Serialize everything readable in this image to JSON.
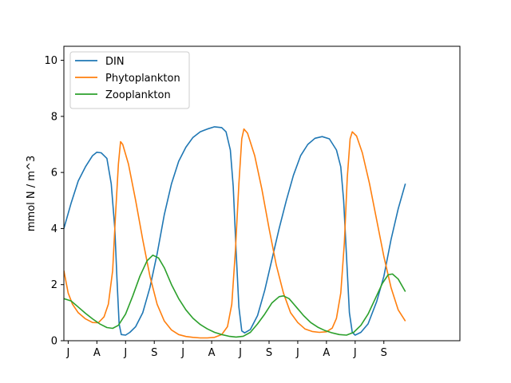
{
  "chart_data": {
    "type": "line",
    "title": "",
    "xlabel": "",
    "ylabel": "mmol N / m^3",
    "xlim": [
      0,
      27.6
    ],
    "ylim": [
      0,
      10.5
    ],
    "x_ticks": [
      {
        "pos": 0.3,
        "label": "J"
      },
      {
        "pos": 2.3,
        "label": "A"
      },
      {
        "pos": 4.3,
        "label": "J"
      },
      {
        "pos": 6.3,
        "label": "S"
      },
      {
        "pos": 8.3,
        "label": "J"
      },
      {
        "pos": 10.3,
        "label": "A"
      },
      {
        "pos": 12.3,
        "label": "J"
      },
      {
        "pos": 14.3,
        "label": "S"
      },
      {
        "pos": 16.3,
        "label": "J"
      },
      {
        "pos": 18.3,
        "label": "A"
      },
      {
        "pos": 20.3,
        "label": "J"
      },
      {
        "pos": 22.3,
        "label": "S"
      }
    ],
    "y_ticks": [
      0,
      2,
      4,
      6,
      8,
      10
    ],
    "legend": {
      "placement": "top-left"
    },
    "grid": false,
    "series": [
      {
        "name": "DIN",
        "color": "#1f77b4",
        "points": [
          [
            0,
            4.0
          ],
          [
            0.5,
            4.9
          ],
          [
            1,
            5.7
          ],
          [
            1.5,
            6.2
          ],
          [
            2,
            6.6
          ],
          [
            2.3,
            6.72
          ],
          [
            2.6,
            6.7
          ],
          [
            3,
            6.5
          ],
          [
            3.3,
            5.6
          ],
          [
            3.55,
            4.0
          ],
          [
            3.7,
            2.2
          ],
          [
            3.85,
            0.6
          ],
          [
            4.0,
            0.22
          ],
          [
            4.3,
            0.2
          ],
          [
            4.6,
            0.3
          ],
          [
            5.0,
            0.5
          ],
          [
            5.5,
            1.0
          ],
          [
            6.0,
            1.9
          ],
          [
            6.5,
            3.1
          ],
          [
            7.0,
            4.5
          ],
          [
            7.5,
            5.6
          ],
          [
            8.0,
            6.4
          ],
          [
            8.5,
            6.9
          ],
          [
            9.0,
            7.25
          ],
          [
            9.5,
            7.45
          ],
          [
            10,
            7.55
          ],
          [
            10.5,
            7.63
          ],
          [
            11,
            7.6
          ],
          [
            11.3,
            7.45
          ],
          [
            11.6,
            6.8
          ],
          [
            11.8,
            5.5
          ],
          [
            12.0,
            3.2
          ],
          [
            12.2,
            1.2
          ],
          [
            12.4,
            0.35
          ],
          [
            12.6,
            0.28
          ],
          [
            13.0,
            0.4
          ],
          [
            13.5,
            0.9
          ],
          [
            14.0,
            1.8
          ],
          [
            14.5,
            2.9
          ],
          [
            15.0,
            4.0
          ],
          [
            15.5,
            5.0
          ],
          [
            16.0,
            5.9
          ],
          [
            16.5,
            6.6
          ],
          [
            17.0,
            7.0
          ],
          [
            17.5,
            7.22
          ],
          [
            18.0,
            7.28
          ],
          [
            18.5,
            7.2
          ],
          [
            19.0,
            6.8
          ],
          [
            19.3,
            6.2
          ],
          [
            19.5,
            5.0
          ],
          [
            19.7,
            3.0
          ],
          [
            19.9,
            1.0
          ],
          [
            20.1,
            0.3
          ],
          [
            20.3,
            0.2
          ],
          [
            20.7,
            0.3
          ],
          [
            21.2,
            0.6
          ],
          [
            21.8,
            1.4
          ],
          [
            22.3,
            2.3
          ],
          [
            22.8,
            3.6
          ],
          [
            23.3,
            4.7
          ],
          [
            23.8,
            5.6
          ]
        ]
      },
      {
        "name": "Phytoplankton",
        "color": "#ff7f0e",
        "points": [
          [
            0,
            2.5
          ],
          [
            0.3,
            1.7
          ],
          [
            0.6,
            1.3
          ],
          [
            1,
            1.0
          ],
          [
            1.5,
            0.78
          ],
          [
            2,
            0.65
          ],
          [
            2.4,
            0.64
          ],
          [
            2.8,
            0.85
          ],
          [
            3.1,
            1.3
          ],
          [
            3.4,
            2.5
          ],
          [
            3.6,
            4.5
          ],
          [
            3.8,
            6.3
          ],
          [
            3.95,
            7.1
          ],
          [
            4.1,
            7.0
          ],
          [
            4.5,
            6.3
          ],
          [
            5.0,
            5.0
          ],
          [
            5.5,
            3.6
          ],
          [
            6.0,
            2.3
          ],
          [
            6.5,
            1.3
          ],
          [
            7.0,
            0.7
          ],
          [
            7.5,
            0.38
          ],
          [
            8.0,
            0.22
          ],
          [
            8.5,
            0.15
          ],
          [
            9.0,
            0.12
          ],
          [
            9.5,
            0.1
          ],
          [
            10,
            0.1
          ],
          [
            10.5,
            0.12
          ],
          [
            11.0,
            0.22
          ],
          [
            11.4,
            0.5
          ],
          [
            11.7,
            1.3
          ],
          [
            11.95,
            3.2
          ],
          [
            12.2,
            5.6
          ],
          [
            12.4,
            7.2
          ],
          [
            12.55,
            7.55
          ],
          [
            12.8,
            7.4
          ],
          [
            13.3,
            6.6
          ],
          [
            13.8,
            5.4
          ],
          [
            14.3,
            4.0
          ],
          [
            14.8,
            2.7
          ],
          [
            15.3,
            1.7
          ],
          [
            15.8,
            1.0
          ],
          [
            16.3,
            0.65
          ],
          [
            16.8,
            0.42
          ],
          [
            17.3,
            0.33
          ],
          [
            17.8,
            0.3
          ],
          [
            18.3,
            0.32
          ],
          [
            18.7,
            0.45
          ],
          [
            19.0,
            0.8
          ],
          [
            19.3,
            1.7
          ],
          [
            19.55,
            3.5
          ],
          [
            19.75,
            5.8
          ],
          [
            19.95,
            7.2
          ],
          [
            20.1,
            7.45
          ],
          [
            20.4,
            7.3
          ],
          [
            20.8,
            6.7
          ],
          [
            21.3,
            5.6
          ],
          [
            21.8,
            4.3
          ],
          [
            22.3,
            3.0
          ],
          [
            22.8,
            1.9
          ],
          [
            23.3,
            1.1
          ],
          [
            23.8,
            0.7
          ]
        ]
      },
      {
        "name": "Zooplankton",
        "color": "#2ca02c",
        "points": [
          [
            0,
            1.5
          ],
          [
            0.5,
            1.42
          ],
          [
            1,
            1.2
          ],
          [
            1.5,
            0.98
          ],
          [
            2,
            0.78
          ],
          [
            2.5,
            0.6
          ],
          [
            3,
            0.47
          ],
          [
            3.4,
            0.44
          ],
          [
            3.8,
            0.55
          ],
          [
            4.3,
            0.95
          ],
          [
            4.8,
            1.6
          ],
          [
            5.3,
            2.3
          ],
          [
            5.8,
            2.85
          ],
          [
            6.2,
            3.05
          ],
          [
            6.6,
            2.95
          ],
          [
            7.0,
            2.6
          ],
          [
            7.5,
            2.0
          ],
          [
            8.0,
            1.5
          ],
          [
            8.5,
            1.1
          ],
          [
            9.0,
            0.8
          ],
          [
            9.5,
            0.58
          ],
          [
            10.0,
            0.42
          ],
          [
            10.5,
            0.3
          ],
          [
            11.0,
            0.22
          ],
          [
            11.5,
            0.16
          ],
          [
            12.0,
            0.13
          ],
          [
            12.5,
            0.16
          ],
          [
            13.0,
            0.3
          ],
          [
            13.5,
            0.6
          ],
          [
            14.0,
            0.95
          ],
          [
            14.5,
            1.35
          ],
          [
            15.0,
            1.57
          ],
          [
            15.3,
            1.6
          ],
          [
            15.7,
            1.5
          ],
          [
            16.2,
            1.2
          ],
          [
            16.7,
            0.9
          ],
          [
            17.2,
            0.65
          ],
          [
            17.7,
            0.48
          ],
          [
            18.2,
            0.36
          ],
          [
            18.7,
            0.28
          ],
          [
            19.2,
            0.22
          ],
          [
            19.7,
            0.2
          ],
          [
            20.2,
            0.3
          ],
          [
            20.7,
            0.55
          ],
          [
            21.2,
            0.95
          ],
          [
            21.7,
            1.5
          ],
          [
            22.2,
            2.05
          ],
          [
            22.6,
            2.35
          ],
          [
            22.9,
            2.38
          ],
          [
            23.3,
            2.2
          ],
          [
            23.8,
            1.75
          ]
        ]
      }
    ]
  }
}
